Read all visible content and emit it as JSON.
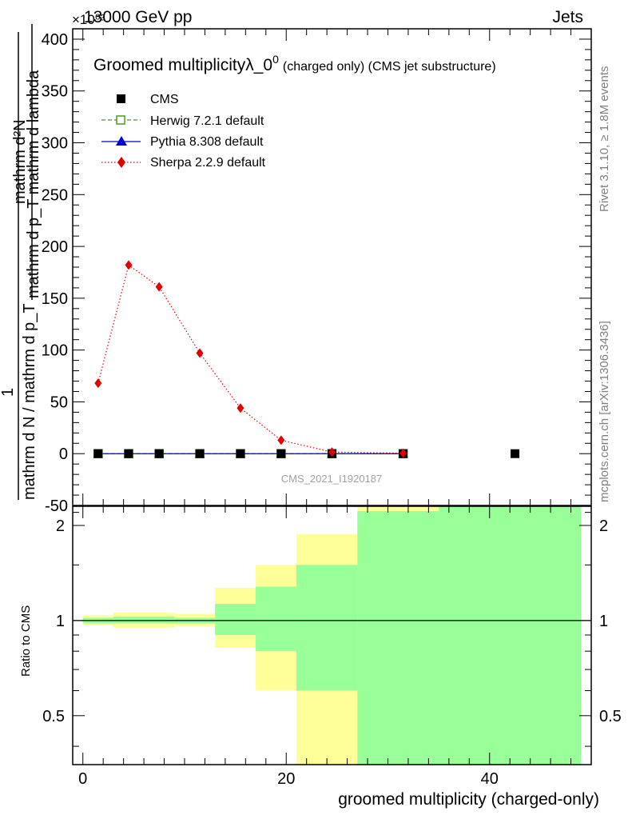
{
  "header": {
    "process": "13000 GeV pp",
    "category": "Jets",
    "exponent": "×10⁰³"
  },
  "side_labels": {
    "rivet": "Rivet 3.1.10, ≥ 1.8M events",
    "mcplots": "mcplots.cern.ch [arXiv:1306.3436]"
  },
  "watermark": "CMS_2021_I1920187",
  "chart_data": [
    {
      "type": "line",
      "title": "Groomed multiplicityλ_0",
      "title_sup": "0",
      "subtitle": "(charged only) (CMS jet substructure)",
      "ylabel_top": "1",
      "ylabel_num": "mathrm d²N",
      "ylabel_den_num": "mathrm d p_T mathrm d lambda",
      "ylabel_full_den": "mathrm d N / mathrm d p_T",
      "xlabel": "groomed multiplicity (charged-only)",
      "xlim": [
        -1,
        50
      ],
      "ylim": [
        -50,
        410
      ],
      "yticks": [
        -50,
        0,
        50,
        100,
        150,
        200,
        250,
        300,
        350,
        400
      ],
      "xticks": [
        0,
        20,
        40
      ],
      "legend_position": "top-left",
      "legend": [
        {
          "name": "CMS",
          "color": "#000000",
          "marker": "square-filled",
          "line": "none"
        },
        {
          "name": "Herwig 7.2.1 default",
          "color": "#4c9a1e",
          "marker": "square-open",
          "line": "dashed"
        },
        {
          "name": "Pythia 8.308 default",
          "color": "#0000cc",
          "marker": "triangle",
          "line": "solid"
        },
        {
          "name": "Sherpa 2.2.9 default",
          "color": "#e00000",
          "marker": "diamond",
          "line": "dotted"
        }
      ],
      "series": [
        {
          "name": "CMS",
          "x": [
            1.5,
            4.5,
            7.5,
            11.5,
            15.5,
            19.5,
            24.5,
            31.5,
            42.5
          ],
          "values": [
            0,
            0,
            0,
            0,
            0,
            0,
            0,
            0,
            0
          ]
        },
        {
          "name": "Herwig 7.2.1 default",
          "x": [
            1.5,
            4.5,
            7.5,
            11.5,
            15.5,
            19.5,
            24.5,
            31.5
          ],
          "values": [
            0,
            0,
            0,
            0,
            0,
            0,
            0,
            0
          ]
        },
        {
          "name": "Pythia 8.308 default",
          "x": [
            1.5,
            4.5,
            7.5,
            11.5,
            15.5,
            19.5,
            24.5,
            31.5
          ],
          "values": [
            0,
            0,
            0,
            0,
            0,
            0,
            0,
            0
          ]
        },
        {
          "name": "Sherpa 2.2.9 default",
          "x": [
            1.5,
            4.5,
            7.5,
            11.5,
            15.5,
            19.5,
            24.5,
            31.5
          ],
          "values": [
            68,
            182,
            161,
            97,
            44,
            13,
            1.5,
            0.5
          ]
        }
      ]
    },
    {
      "type": "area",
      "ylabel": "Ratio to CMS",
      "ylim": [
        0.35,
        2.3
      ],
      "yticks": [
        0.5,
        1,
        2
      ],
      "ytick_labels": [
        "0.5",
        "1",
        "2"
      ],
      "reference_line": 1,
      "bands": [
        {
          "name": "stat+syst",
          "color": "#ffff99",
          "bins": [
            [
              0,
              3,
              0.97,
              1.04
            ],
            [
              3,
              9,
              0.95,
              1.06
            ],
            [
              9,
              13,
              0.96,
              1.05
            ],
            [
              13,
              17,
              0.82,
              1.27
            ],
            [
              17,
              21,
              0.6,
              1.5
            ],
            [
              21,
              27,
              0.35,
              1.88
            ],
            [
              27,
              35,
              0.35,
              2.3
            ],
            [
              35,
              49,
              0.35,
              2.3
            ]
          ]
        },
        {
          "name": "stat",
          "color": "#99ff99",
          "bins": [
            [
              0,
              3,
              0.98,
              1.02
            ],
            [
              3,
              9,
              0.98,
              1.03
            ],
            [
              9,
              13,
              0.98,
              1.02
            ],
            [
              13,
              17,
              0.9,
              1.13
            ],
            [
              17,
              21,
              0.8,
              1.28
            ],
            [
              21,
              27,
              0.6,
              1.5
            ],
            [
              27,
              35,
              0.35,
              2.22
            ],
            [
              35,
              49,
              0.35,
              2.3
            ]
          ]
        }
      ]
    }
  ],
  "colors": {
    "axis": "#000000",
    "cms": "#000000",
    "herwig": "#4c9a1e",
    "pythia": "#0000cc",
    "sherpa": "#e00000",
    "band_outer": "#ffff99",
    "band_inner": "#99ff99",
    "side_text": "#808080",
    "watermark": "#a0a0a0"
  }
}
